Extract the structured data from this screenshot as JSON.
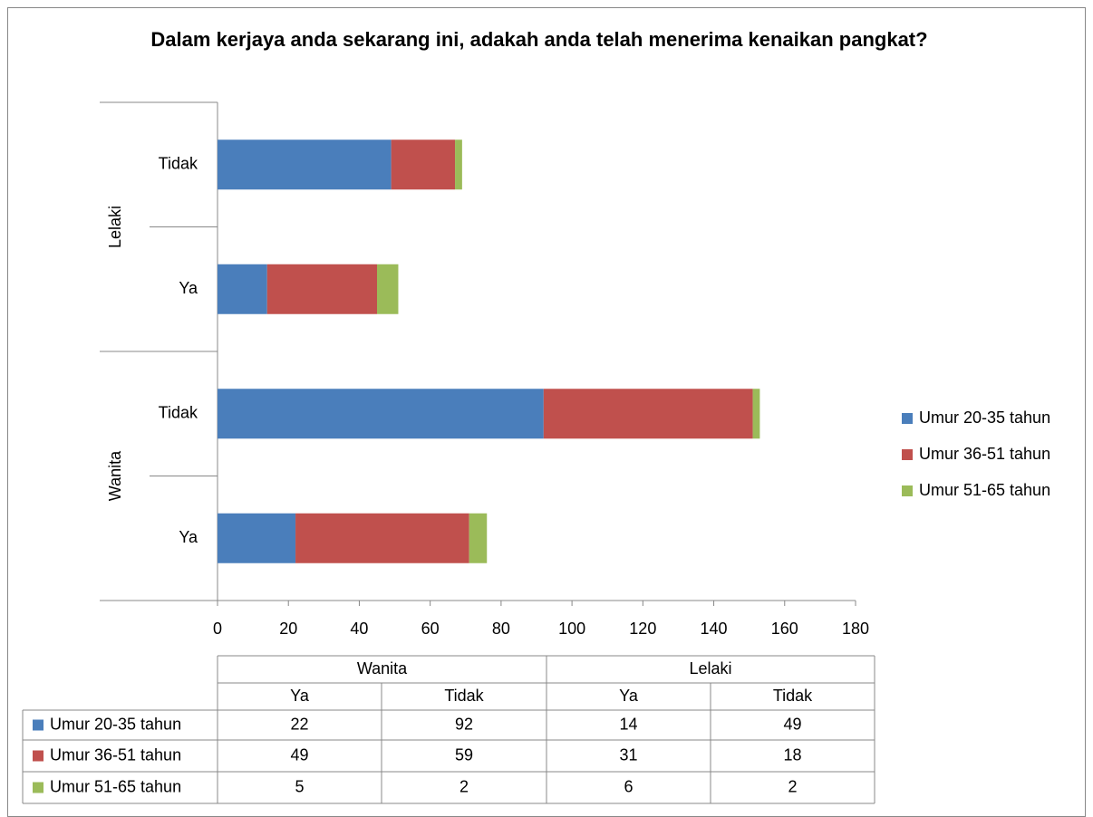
{
  "chart_data": {
    "type": "bar",
    "orientation": "horizontal",
    "stacked": true,
    "title": "Dalam kerjaya anda sekarang ini, adakah anda telah menerima kenaikan pangkat?",
    "groups": [
      {
        "name": "Wanita",
        "categories": [
          "Ya",
          "Tidak"
        ]
      },
      {
        "name": "Lelaki",
        "categories": [
          "Ya",
          "Tidak"
        ]
      }
    ],
    "series": [
      {
        "name": "Umur 20-35 tahun",
        "color": "#4a7ebb",
        "values": [
          22,
          92,
          14,
          49
        ]
      },
      {
        "name": "Umur 36-51 tahun",
        "color": "#c0504d",
        "values": [
          49,
          59,
          31,
          18
        ]
      },
      {
        "name": "Umur 51-65 tahun",
        "color": "#9bbb59",
        "values": [
          5,
          2,
          6,
          2
        ]
      }
    ],
    "xlim": [
      0,
      180
    ],
    "xticks": [
      0,
      20,
      40,
      60,
      80,
      100,
      120,
      140,
      160,
      180
    ],
    "grid": false,
    "legend": "right",
    "data_table": true
  }
}
